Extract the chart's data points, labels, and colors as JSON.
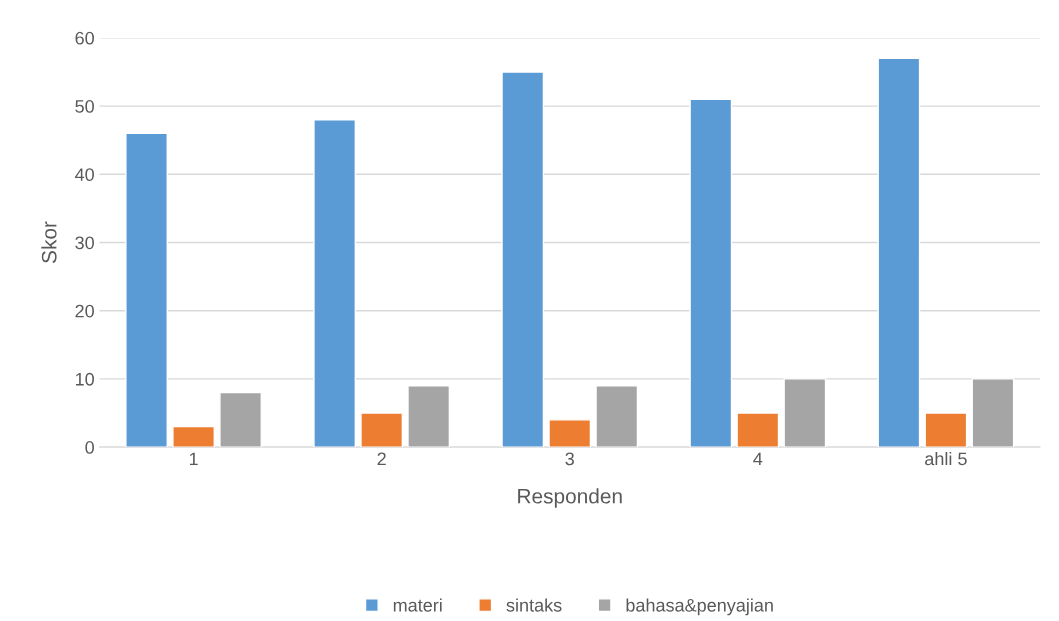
{
  "chart_data": {
    "type": "bar",
    "xlabel": "Responden",
    "ylabel": "Skor",
    "categories": [
      "1",
      "2",
      "3",
      "4",
      "ahli 5"
    ],
    "series": [
      {
        "name": "materi",
        "color": "#5b9bd5",
        "values": [
          46,
          48,
          55,
          51,
          57
        ]
      },
      {
        "name": "sintaks",
        "color": "#ed7d31",
        "values": [
          3,
          5,
          4,
          5,
          5
        ]
      },
      {
        "name": "bahasa&penyajian",
        "color": "#a5a5a5",
        "values": [
          8,
          9,
          9,
          10,
          10
        ]
      }
    ],
    "ylim": [
      0,
      60
    ],
    "yticks": [
      0,
      10,
      20,
      30,
      40,
      50,
      60
    ],
    "grid": "y",
    "legend": "bottom"
  }
}
